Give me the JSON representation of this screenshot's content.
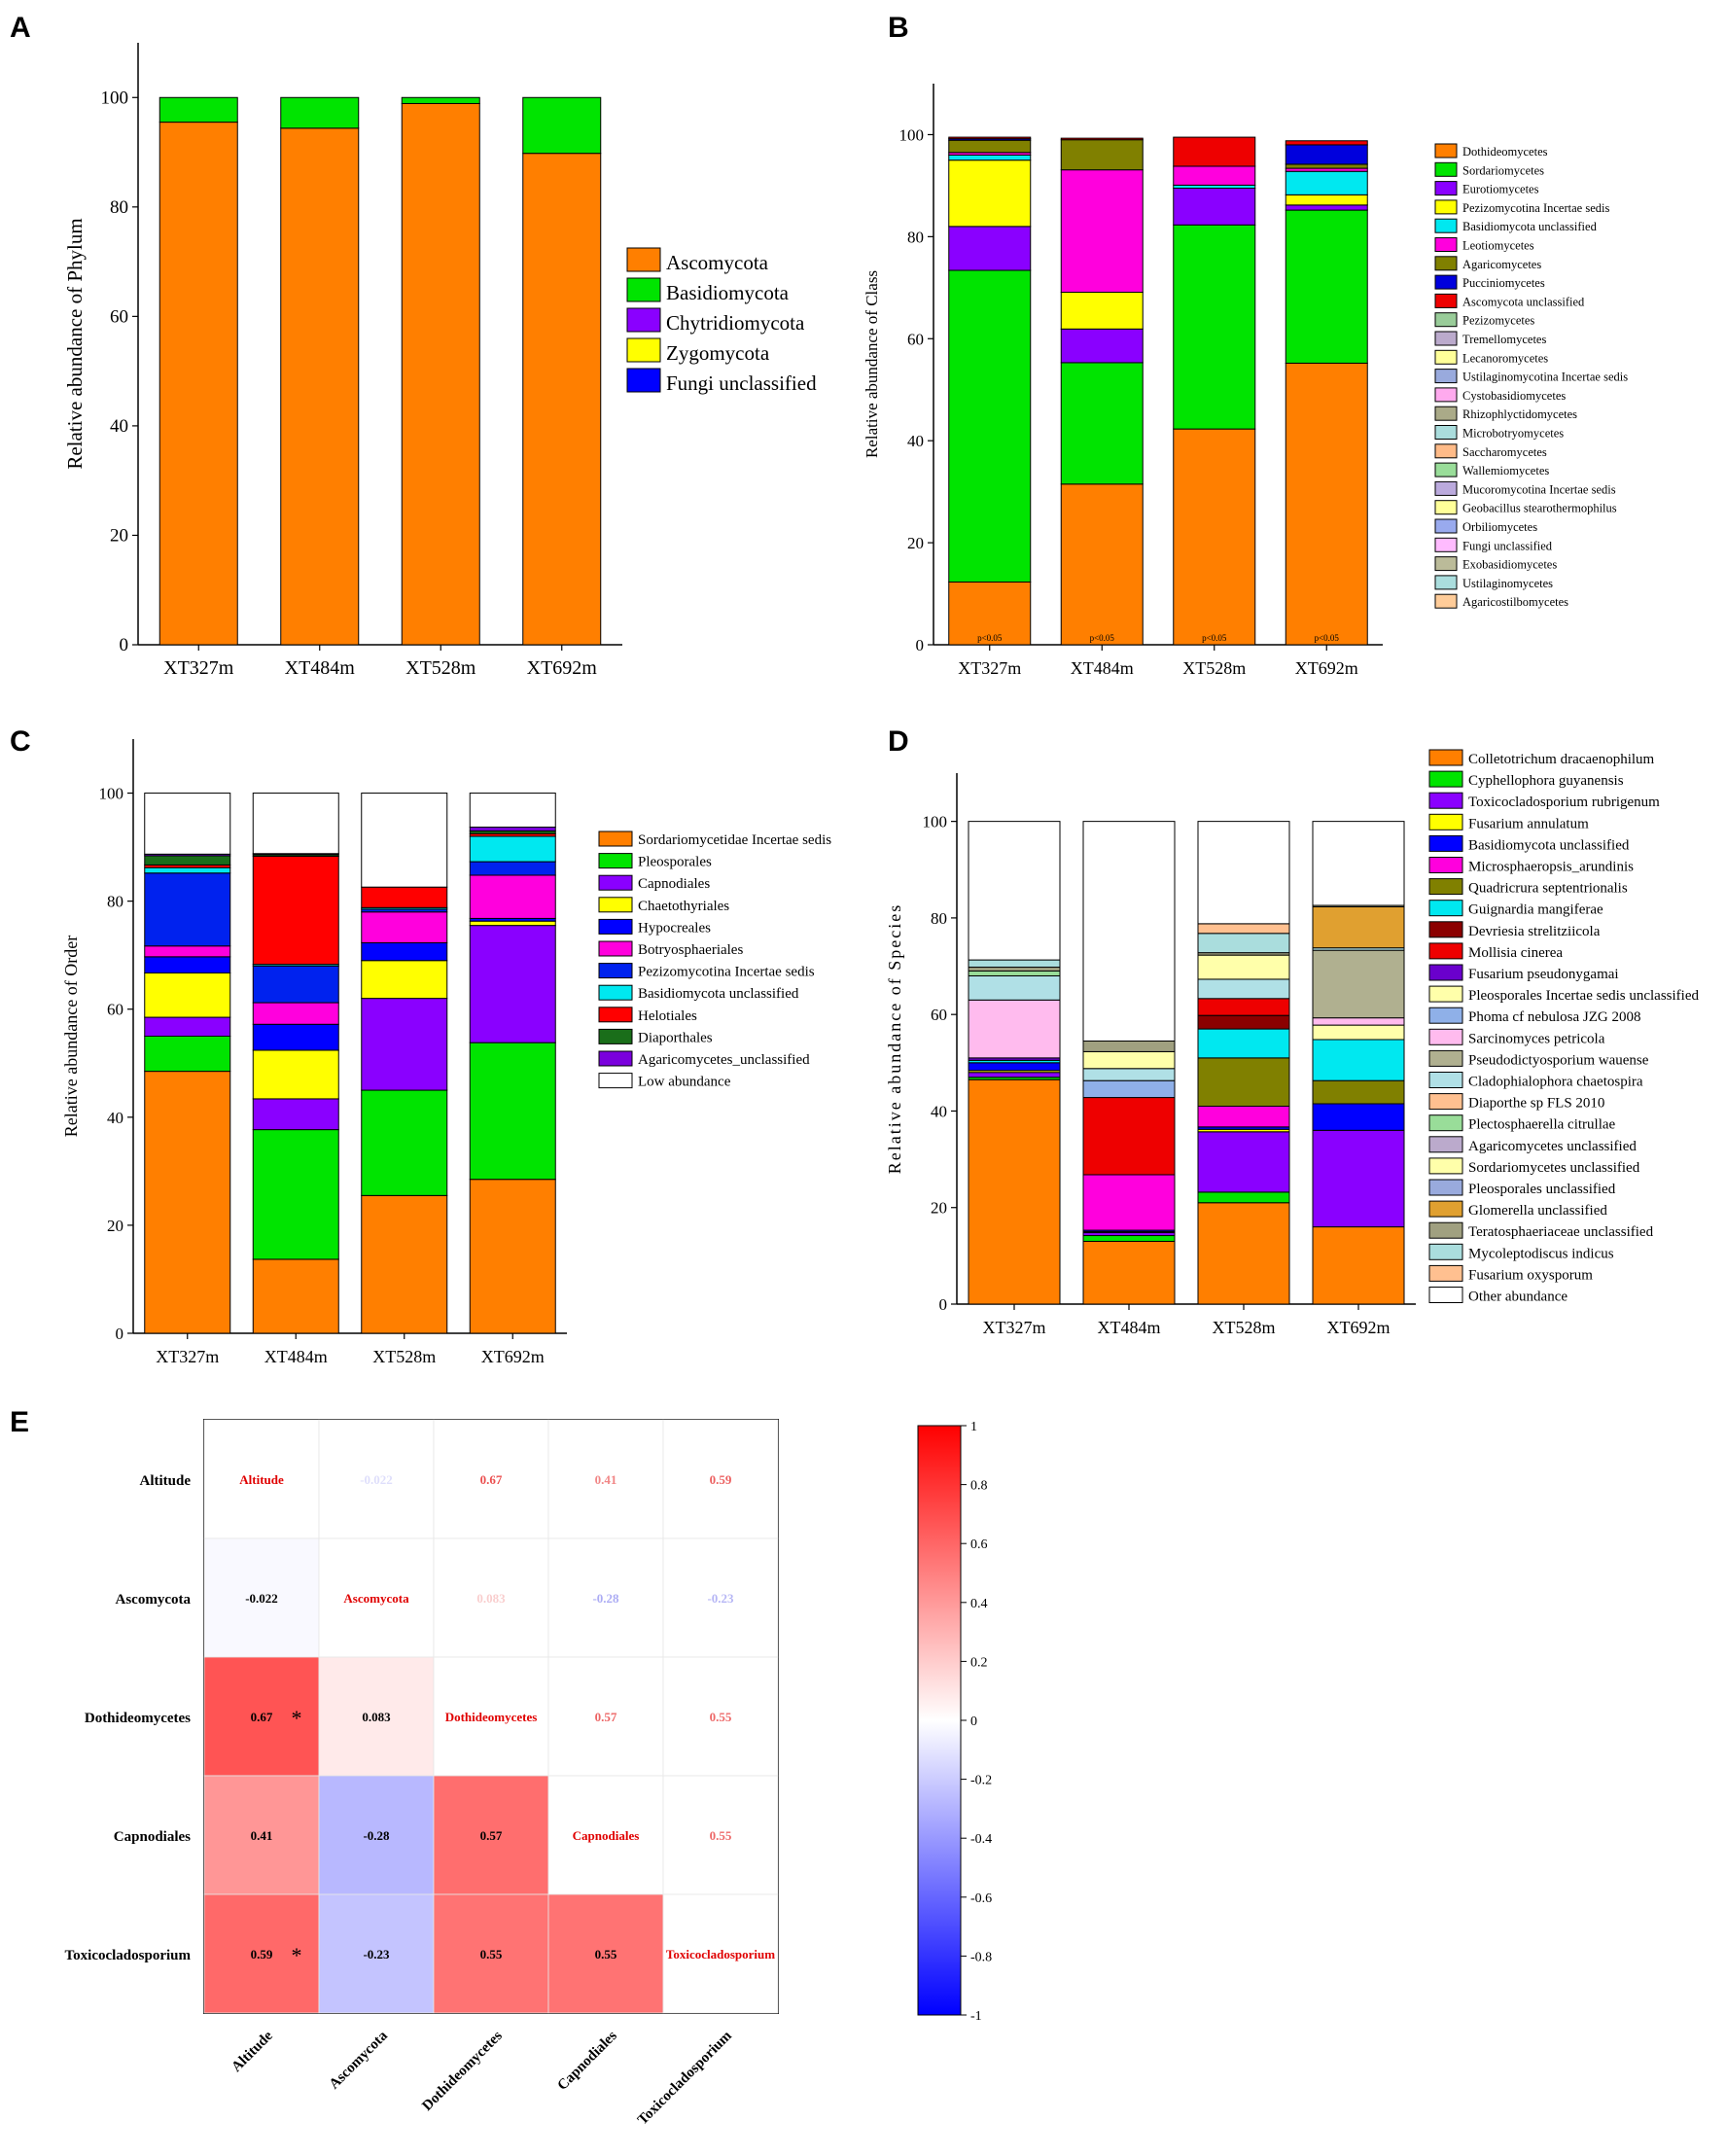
{
  "panels": {
    "A": {
      "letter": "A",
      "type": "stacked-bar",
      "ylabel": "Relative abundance of Phylum",
      "ylim": [
        0,
        110
      ],
      "yticks": [
        0,
        20,
        40,
        60,
        80,
        100
      ],
      "categories": [
        "XT327m",
        "XT484m",
        "XT528m",
        "XT692m"
      ],
      "series": [
        {
          "name": "Ascomycota",
          "color": "#ff7f00",
          "values": [
            95.5,
            94.4,
            98.9,
            89.8
          ]
        },
        {
          "name": "Basidiomycota",
          "color": "#00e400",
          "values": [
            4.5,
            5.6,
            1.1,
            10.2
          ]
        },
        {
          "name": "Chytridiomycota",
          "color": "#8a00ff",
          "values": [
            0,
            0,
            0,
            0
          ]
        },
        {
          "name": "Zygomycota",
          "color": "#ffff00",
          "values": [
            0,
            0,
            0,
            0
          ]
        },
        {
          "name": "Fungi unclassified",
          "color": "#0000ff",
          "values": [
            0,
            0,
            0,
            0
          ]
        }
      ]
    },
    "B": {
      "letter": "B",
      "type": "stacked-bar",
      "ylabel": "Relative abundance of Class",
      "ylim": [
        0,
        110
      ],
      "yticks": [
        0,
        20,
        40,
        60,
        80,
        100
      ],
      "categories": [
        "XT327m",
        "XT484m",
        "XT528m",
        "XT692m"
      ],
      "bar_annotations": [
        "p<0.05",
        "p<0.05",
        "p<0.05",
        "p<0.05"
      ],
      "series": [
        {
          "name": "Dothideomycetes",
          "color": "#ff7f00",
          "values": [
            12.3,
            31.5,
            42.3,
            55.2
          ]
        },
        {
          "name": "Sordariomycetes",
          "color": "#00e400",
          "values": [
            61.1,
            23.8,
            40.0,
            30.0
          ]
        },
        {
          "name": "Eurotiomycetes",
          "color": "#8a00ff",
          "values": [
            8.6,
            6.6,
            7.2,
            1.0
          ]
        },
        {
          "name": "Pezizomycotina Incertae sedis",
          "color": "#ffff00",
          "values": [
            13.0,
            7.2,
            0.0,
            2.0
          ]
        },
        {
          "name": "Basidiomycota unclassified",
          "color": "#00e8f0",
          "values": [
            1.0,
            0.0,
            0.6,
            4.6
          ]
        },
        {
          "name": "Leotiomycetes",
          "color": "#ff00dd",
          "values": [
            0.5,
            24.0,
            3.7,
            0.6
          ]
        },
        {
          "name": "Agaricomycetes",
          "color": "#808000",
          "values": [
            2.4,
            5.9,
            0.0,
            0.8
          ]
        },
        {
          "name": "Pucciniomycetes",
          "color": "#0000dd",
          "values": [
            0.3,
            0.0,
            0.0,
            3.8
          ]
        },
        {
          "name": "Ascomycota unclassified",
          "color": "#ee0000",
          "values": [
            0.3,
            0.3,
            5.7,
            0.8
          ]
        },
        {
          "name": "Pezizomycetes",
          "color": "#99cc99",
          "values": [
            0,
            0,
            0,
            0
          ]
        },
        {
          "name": "Tremellomycetes",
          "color": "#bbaacc",
          "values": [
            0,
            0,
            0,
            0
          ]
        },
        {
          "name": "Lecanoromycetes",
          "color": "#ffff99",
          "values": [
            0,
            0,
            0,
            0
          ]
        },
        {
          "name": "Ustilaginomycotina Incertae sedis",
          "color": "#99aadd",
          "values": [
            0,
            0,
            0,
            0
          ]
        },
        {
          "name": "Cystobasidiomycetes",
          "color": "#ffaaee",
          "values": [
            0,
            0,
            0,
            0
          ]
        },
        {
          "name": "Rhizophlyctidomycetes",
          "color": "#aaaa88",
          "values": [
            0,
            0,
            0,
            0
          ]
        },
        {
          "name": "Microbotryomycetes",
          "color": "#aadddd",
          "values": [
            0,
            0,
            0,
            0
          ]
        },
        {
          "name": "Saccharomycetes",
          "color": "#ffbb88",
          "values": [
            0,
            0,
            0,
            0
          ]
        },
        {
          "name": "Wallemiomycetes",
          "color": "#99dd99",
          "values": [
            0,
            0,
            0,
            0
          ]
        },
        {
          "name": "Mucoromycotina Incertae sedis",
          "color": "#bbaadd",
          "values": [
            0,
            0,
            0,
            0
          ]
        },
        {
          "name": "Geobacillus stearothermophilus",
          "color": "#ffff99",
          "values": [
            0,
            0,
            0,
            0
          ]
        },
        {
          "name": "Orbiliomycetes",
          "color": "#99aaee",
          "values": [
            0,
            0,
            0,
            0
          ]
        },
        {
          "name": "Fungi unclassified",
          "color": "#ffbbff",
          "values": [
            0,
            0,
            0,
            0
          ]
        },
        {
          "name": "Exobasidiomycetes",
          "color": "#bbbb99",
          "values": [
            0,
            0,
            0,
            0
          ]
        },
        {
          "name": "Ustilaginomycetes",
          "color": "#aadddd",
          "values": [
            0,
            0,
            0,
            0
          ]
        },
        {
          "name": "Agaricostilbomycetes",
          "color": "#ffcc99",
          "values": [
            0,
            0,
            0,
            0
          ]
        }
      ]
    },
    "C": {
      "letter": "C",
      "type": "stacked-bar",
      "ylabel": "Relative abundance of Order",
      "ylim": [
        0,
        110
      ],
      "yticks": [
        0,
        20,
        40,
        60,
        80,
        100
      ],
      "categories": [
        "XT327m",
        "XT484m",
        "XT528m",
        "XT692m"
      ],
      "series": [
        {
          "name": "Sordariomycetidae Incertae sedis",
          "color": "#ff7f00",
          "values": [
            48.5,
            13.7,
            25.5,
            28.5
          ]
        },
        {
          "name": "Pleosporales",
          "color": "#00e400",
          "values": [
            6.5,
            24.0,
            19.5,
            25.3
          ]
        },
        {
          "name": "Capnodiales",
          "color": "#8a00ff",
          "values": [
            3.5,
            5.7,
            17.0,
            21.7
          ]
        },
        {
          "name": "Chaetothyriales",
          "color": "#ffff00",
          "values": [
            8.2,
            9.0,
            7.0,
            0.8
          ]
        },
        {
          "name": "Hypocreales",
          "color": "#0000ff",
          "values": [
            3.0,
            4.8,
            3.3,
            0.5
          ]
        },
        {
          "name": "Botryosphaeriales",
          "color": "#ff00dd",
          "values": [
            2.0,
            4.0,
            5.7,
            8.0
          ]
        },
        {
          "name": "Pezizomycotina Incertae sedis",
          "color": "#0022ee",
          "values": [
            13.5,
            6.8,
            0.5,
            2.5
          ]
        },
        {
          "name": "Basidiomycota unclassified",
          "color": "#00e8f0",
          "values": [
            1.0,
            0.3,
            0.3,
            4.7
          ]
        },
        {
          "name": "Helotiales",
          "color": "#ff0000",
          "values": [
            0.5,
            20.0,
            3.8,
            0.5
          ]
        },
        {
          "name": "Diaporthales",
          "color": "#1a6e1a",
          "values": [
            1.7,
            0.3,
            0.0,
            0.5
          ]
        },
        {
          "name": "Agaricomycetes_unclassified",
          "color": "#7a00dd",
          "values": [
            0.3,
            0.2,
            0.0,
            0.7
          ]
        },
        {
          "name": "Low abundance",
          "color": "#ffffff",
          "values": [
            11.3,
            11.2,
            17.4,
            6.3
          ]
        }
      ]
    },
    "D": {
      "letter": "D",
      "type": "stacked-bar",
      "ylabel": "Relative abundance of Species",
      "ylim": [
        0,
        110
      ],
      "yticks": [
        0,
        20,
        40,
        60,
        80,
        100
      ],
      "categories": [
        "XT327m",
        "XT484m",
        "XT528m",
        "XT692m"
      ],
      "series": [
        {
          "name": "Colletotrichum dracaenophilum",
          "color": "#ff7f00",
          "values": [
            46.5,
            13.0,
            21.0,
            16.0
          ]
        },
        {
          "name": "Cyphellophora guyanensis",
          "color": "#00e400",
          "values": [
            0.5,
            1.2,
            2.2,
            0.0
          ]
        },
        {
          "name": "Toxicocladosporium rubrigenum",
          "color": "#8a00ff",
          "values": [
            1.0,
            0.6,
            12.5,
            20.0
          ]
        },
        {
          "name": "Fusarium annulatum",
          "color": "#ffff00",
          "values": [
            0.4,
            0.2,
            0.5,
            0.0
          ]
        },
        {
          "name": "Basidiomycota unclassified",
          "color": "#0000ff",
          "values": [
            1.6,
            0.3,
            0.5,
            5.5
          ]
        },
        {
          "name": "Microsphaeropsis_arundinis",
          "color": "#ff00dd",
          "values": [
            0.0,
            11.5,
            4.3,
            0.0
          ]
        },
        {
          "name": "Quadricrura septentrionalis",
          "color": "#808000",
          "values": [
            0.0,
            0.0,
            10.0,
            4.8
          ]
        },
        {
          "name": "Guignardia mangiferae",
          "color": "#00e8f0",
          "values": [
            0.5,
            0.0,
            6.0,
            8.5
          ]
        },
        {
          "name": "Devriesia strelitziicola",
          "color": "#8b0000",
          "values": [
            0.0,
            0.0,
            2.8,
            0.0
          ]
        },
        {
          "name": "Mollisia cinerea",
          "color": "#ee0000",
          "values": [
            0.0,
            16.0,
            3.5,
            0.0
          ]
        },
        {
          "name": "Fusarium pseudonygamai",
          "color": "#6a00cc",
          "values": [
            0.5,
            0.0,
            0.0,
            0.0
          ]
        },
        {
          "name": "Pleosporales Incertae sedis unclassified",
          "color": "#ffffaa",
          "values": [
            0.0,
            0.0,
            0.0,
            3.0
          ]
        },
        {
          "name": "Phoma cf nebulosa JZG 2008",
          "color": "#8fb0e8",
          "values": [
            0.0,
            3.5,
            0.0,
            0.0
          ]
        },
        {
          "name": "Sarcinomyces petricola",
          "color": "#ffbbee",
          "values": [
            12.0,
            0.0,
            0.0,
            1.5
          ]
        },
        {
          "name": "Pseudodictyosporium wauense",
          "color": "#b0b090",
          "values": [
            0.0,
            0.0,
            0.0,
            14.0
          ]
        },
        {
          "name": "Cladophialophora chaetospira",
          "color": "#b0e0e6",
          "values": [
            5.0,
            2.5,
            4.0,
            0.5
          ]
        },
        {
          "name": "Diaporthe sp FLS 2010",
          "color": "#ffc090",
          "values": [
            0.0,
            0.0,
            0.0,
            0.0
          ]
        },
        {
          "name": "Plectosphaerella citrullae",
          "color": "#99dd99",
          "values": [
            1.0,
            0.0,
            0.0,
            0.0
          ]
        },
        {
          "name": "Agaricomycetes unclassified",
          "color": "#bbaacc",
          "values": [
            0.0,
            0.0,
            0.0,
            0.0
          ]
        },
        {
          "name": "Sordariomycetes unclassified",
          "color": "#ffffaa",
          "values": [
            0.0,
            3.5,
            5.0,
            0.0
          ]
        },
        {
          "name": "Pleosporales unclassified",
          "color": "#99aadd",
          "values": [
            0.0,
            0.0,
            0.0,
            0.0
          ]
        },
        {
          "name": "Glomerella unclassified",
          "color": "#e0a030",
          "values": [
            0.0,
            0.0,
            0.0,
            8.5
          ]
        },
        {
          "name": "Teratosphaeriaceae unclassified",
          "color": "#a0a080",
          "values": [
            0.8,
            2.2,
            0.5,
            0.3
          ]
        },
        {
          "name": "Mycoleptodiscus indicus",
          "color": "#aadddd",
          "values": [
            1.5,
            0.0,
            4.0,
            0.0
          ]
        },
        {
          "name": "Fusarium oxysporum",
          "color": "#ffc090",
          "values": [
            0.0,
            0.0,
            2.0,
            0.0
          ]
        },
        {
          "name": "Other abundance",
          "color": "#ffffff",
          "values": [
            28.7,
            45.5,
            21.2,
            17.4
          ]
        }
      ]
    },
    "E": {
      "letter": "E",
      "type": "heatmap",
      "labels": [
        "Altitude",
        "Ascomycota",
        "Dothideomycetes",
        "Capnodiales",
        "Toxicocladosporium"
      ],
      "matrix": [
        [
          1,
          -0.022,
          0.67,
          0.41,
          0.59
        ],
        [
          -0.022,
          1,
          0.083,
          -0.28,
          -0.23
        ],
        [
          0.67,
          0.083,
          1,
          0.57,
          0.55
        ],
        [
          0.41,
          -0.28,
          0.57,
          1,
          0.55
        ],
        [
          0.59,
          -0.23,
          0.55,
          0.55,
          1
        ]
      ],
      "significant": [
        [
          2,
          0
        ],
        [
          4,
          0
        ]
      ],
      "significance_marker": "*",
      "colorbar_ticks": [
        "1",
        "0.8",
        "0.6",
        "0.4",
        "0.2",
        "0",
        "-0.2",
        "-0.4",
        "-0.6",
        "-0.8",
        "-1"
      ],
      "colors": {
        "positive": "#ff0000",
        "negative": "#0000ff",
        "diagonal_text": "#e00000",
        "neutral": "#ffffff"
      }
    }
  }
}
